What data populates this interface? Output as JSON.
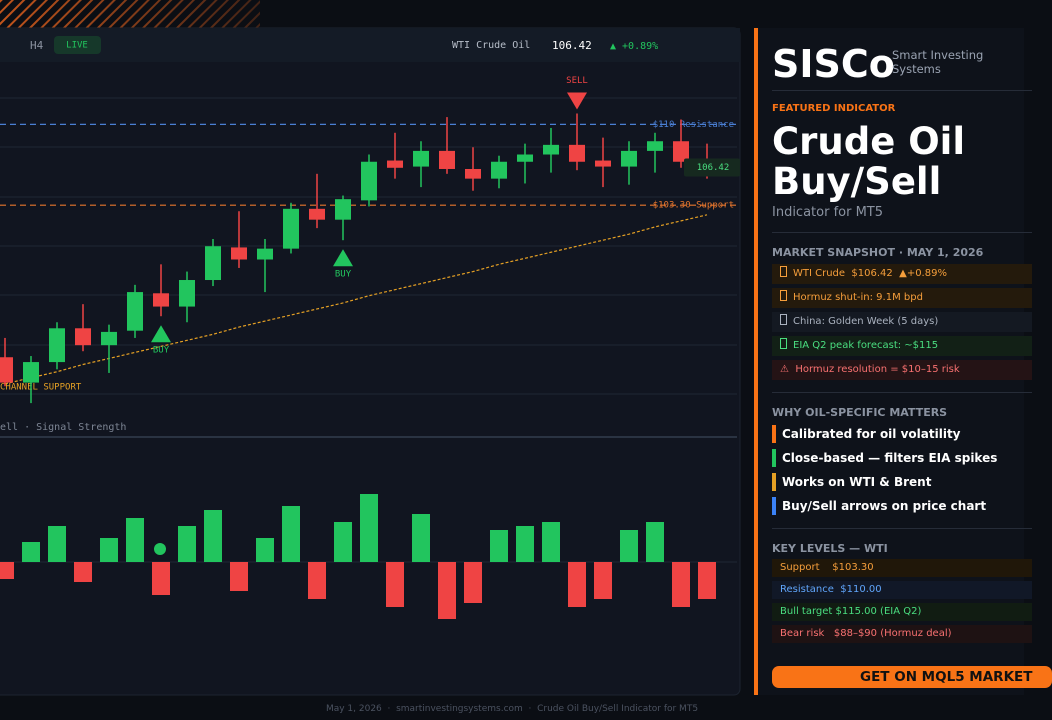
{
  "chart_data": [
    {
      "type": "candlestick",
      "ylim": [
        85.5,
        115
      ],
      "open": [
        90.7,
        88.6,
        90.3,
        93.1,
        91.7,
        92.9,
        96.0,
        94.9,
        97.1,
        99.8,
        98.8,
        99.7,
        103.0,
        102.1,
        103.7,
        107.0,
        106.5,
        107.8,
        106.3,
        105.5,
        106.9,
        107.5,
        108.3,
        107.0,
        106.5,
        107.8,
        108.6,
        106.8
      ],
      "high": [
        92.3,
        90.8,
        93.6,
        95.1,
        93.4,
        96.7,
        98.4,
        97.8,
        100.5,
        102.8,
        100.5,
        103.5,
        105.9,
        104.1,
        107.5,
        109.3,
        108.6,
        110.6,
        108.1,
        107.4,
        108.4,
        109.7,
        110.9,
        108.9,
        108.6,
        109.3,
        110.4,
        108.4
      ],
      "low": [
        88.3,
        86.9,
        89.7,
        91.2,
        89.4,
        92.3,
        94.1,
        93.6,
        96.6,
        98.1,
        96.1,
        99.3,
        101.4,
        100.4,
        103.2,
        105.5,
        104.8,
        105.9,
        104.5,
        104.7,
        105.1,
        106.0,
        106.2,
        104.8,
        105.0,
        106.0,
        106.4,
        105.5
      ],
      "close": [
        88.6,
        90.3,
        93.1,
        91.7,
        92.8,
        96.1,
        94.9,
        97.1,
        99.9,
        98.8,
        99.7,
        103.0,
        102.1,
        103.8,
        106.9,
        106.4,
        107.8,
        106.3,
        105.5,
        106.9,
        107.5,
        108.3,
        106.9,
        106.5,
        107.8,
        108.6,
        106.9,
        106.4
      ],
      "signals": [
        null,
        null,
        null,
        null,
        null,
        null,
        "BUY",
        null,
        null,
        null,
        null,
        null,
        null,
        "BUY",
        null,
        null,
        null,
        null,
        null,
        null,
        null,
        null,
        "SELL",
        null,
        null,
        null,
        null,
        null
      ],
      "channel_support": {
        "label": "CHANNEL SUPPORT",
        "color": "#e5a024",
        "values": [
          88.5,
          89.0,
          89.5,
          90.1,
          90.6,
          91.1,
          91.6,
          92.1,
          92.6,
          93.2,
          93.7,
          94.2,
          94.7,
          95.2,
          95.8,
          96.3,
          96.8,
          97.3,
          97.8,
          98.4,
          98.9,
          99.4,
          99.9,
          100.4,
          100.9,
          101.5,
          102.0,
          102.5
        ]
      },
      "resistance": {
        "value": 110,
        "label": "$110 Resistance",
        "color": "#4a7fd4"
      },
      "support": {
        "value": 103.3,
        "label": "$103.30 Support",
        "color": "#e8772e"
      },
      "last_price": 106.42,
      "up_color": "#22c55e",
      "down_color": "#ef4444"
    },
    {
      "type": "bar",
      "title": "ell  ·  Signal Strength",
      "ylim": [
        -75,
        75
      ],
      "values": [
        -17,
        20,
        36,
        -20,
        24,
        44,
        -33,
        36,
        52,
        -29,
        24,
        56,
        -37,
        40,
        68,
        -45,
        48,
        -57,
        -41,
        32,
        36,
        40,
        -45,
        -37,
        32,
        40,
        -45,
        -37
      ],
      "up_color": "#22c55e",
      "down_color": "#ef4444"
    }
  ],
  "topbar": {
    "timeframe": "H4",
    "status": "LIVE",
    "symbol": "WTI Crude Oil",
    "price": "106.42",
    "change": "▲ +0.89%"
  },
  "panel": {
    "brand": "SISCo",
    "brand_sub": "Smart Investing Systems",
    "featured": "FEATURED INDICATOR",
    "title": "Crude Oil Buy/Sell",
    "subtitle": "Indicator for MT5",
    "snapshot_heading": "MARKET SNAPSHOT · MAY 1, 2026",
    "snapshot": [
      "WTI Crude  $106.42  ▲+0.89%",
      "Hormuz shut-in: 9.1M bpd",
      "China: Golden Week (5 days)",
      "EIA Q2 peak forecast: ~$115",
      "⚠  Hormuz resolution = $10–15 risk"
    ],
    "why_heading": "WHY OIL-SPECIFIC MATTERS",
    "why": [
      "Calibrated for oil volatility",
      "Close-based — filters EIA spikes",
      "Works on WTI & Brent",
      "Buy/Sell arrows on price chart"
    ],
    "levels_heading": "KEY LEVELS — WTI",
    "levels": [
      "Support    $103.30",
      "Resistance  $110.00",
      "Bull target $115.00 (EIA Q2)",
      "Bear risk   $88–$90 (Hormuz deal)"
    ],
    "button": "GET ON MQL5 MARKET"
  },
  "footer": "May 1, 2026  ·  smartinvestingsystems.com  ·  Crude Oil Buy/Sell Indicator for MT5"
}
